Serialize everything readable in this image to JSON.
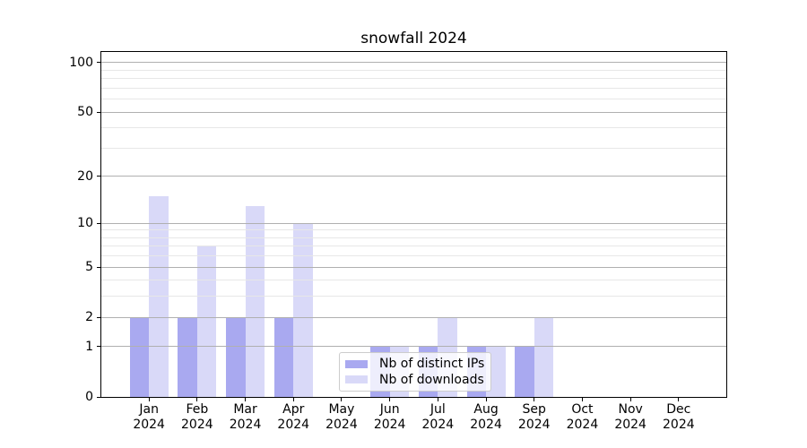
{
  "title": "snowfall 2024",
  "chart_data": {
    "type": "bar",
    "title": "snowfall 2024",
    "x_tick_months": [
      "Jan",
      "Feb",
      "Mar",
      "Apr",
      "May",
      "Jun",
      "Jul",
      "Aug",
      "Sep",
      "Oct",
      "Nov",
      "Dec"
    ],
    "x_tick_year": "2024",
    "series": [
      {
        "name": "Nb of distinct IPs",
        "key": "distinct-ips",
        "values": [
          2,
          2,
          2,
          2,
          0,
          1,
          1,
          1,
          1,
          0,
          0,
          0
        ]
      },
      {
        "name": "Nb of downloads",
        "key": "downloads",
        "values": [
          15,
          7,
          13,
          10,
          0,
          1,
          2,
          1,
          2,
          0,
          0,
          0
        ]
      }
    ],
    "yscale": "log(1+x)",
    "ylim": [
      0,
      116
    ],
    "yticks": [
      0,
      1,
      2,
      5,
      10,
      20,
      50,
      100
    ],
    "yticks_minor": [
      3,
      4,
      6,
      7,
      8,
      9,
      30,
      40,
      60,
      70,
      80,
      90
    ],
    "xlabel": "",
    "ylabel": "",
    "grid": "on",
    "legend_position": "inside lower-center"
  },
  "legend": {
    "items": [
      {
        "label": "Nb of distinct IPs",
        "color_key": "bar_ips"
      },
      {
        "label": "Nb of downloads",
        "color_key": "bar_downloads"
      }
    ]
  },
  "colors": {
    "bar_ips": "#a9a9f0",
    "bar_downloads": "#d9d9f8",
    "grid_major": "#b0b0b0",
    "grid_minor": "#e7e7e7",
    "spine": "#000000",
    "legend_border": "#cccccc"
  }
}
